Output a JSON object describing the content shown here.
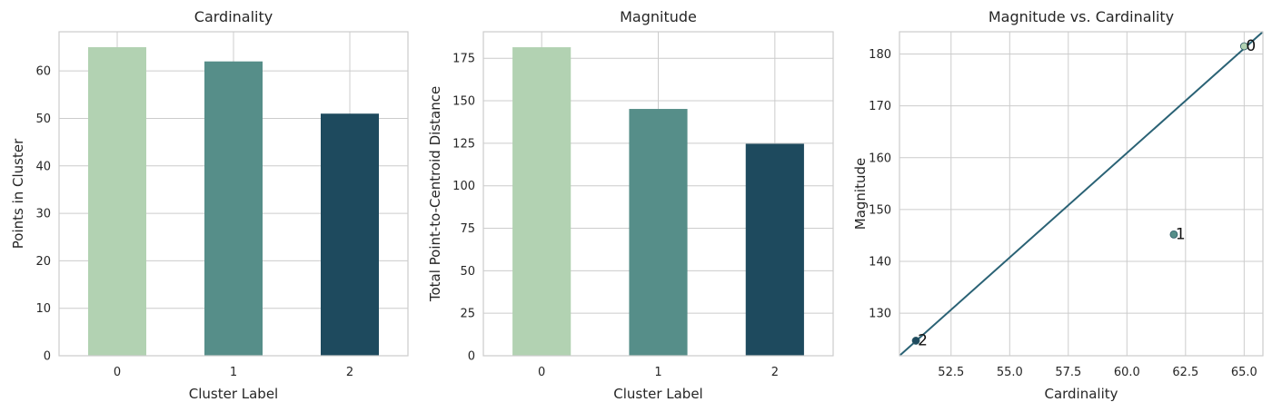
{
  "colors": {
    "cluster_0": "#b2d2b2",
    "cluster_1": "#568e89",
    "cluster_2": "#1e4a5e",
    "fit_line": "#2a6275",
    "grid": "#cccccc",
    "frame": "#cccccc"
  },
  "chart_data": [
    {
      "type": "bar",
      "title": "Cardinality",
      "xlabel": "Cluster Label",
      "ylabel": "Points in Cluster",
      "categories": [
        "0",
        "1",
        "2"
      ],
      "values": [
        65,
        62,
        51
      ],
      "ylim": [
        0,
        68.25
      ],
      "yticks": [
        0,
        10,
        20,
        30,
        40,
        50,
        60
      ],
      "grid": true,
      "legend": "none"
    },
    {
      "type": "bar",
      "title": "Magnitude",
      "xlabel": "Cluster Label",
      "ylabel": "Total Point-to-Centroid Distance",
      "categories": [
        "0",
        "1",
        "2"
      ],
      "values": [
        181.5,
        145.2,
        124.7
      ],
      "ylim": [
        0,
        190.6
      ],
      "yticks": [
        0,
        25,
        50,
        75,
        100,
        125,
        150,
        175
      ],
      "grid": true,
      "legend": "none"
    },
    {
      "type": "scatter",
      "title": "Magnitude vs. Cardinality",
      "xlabel": "Cardinality",
      "ylabel": "Magnitude",
      "points": [
        {
          "label": "0",
          "x": 65,
          "y": 181.5
        },
        {
          "label": "1",
          "x": 62,
          "y": 145.2
        },
        {
          "label": "2",
          "x": 51,
          "y": 124.7
        }
      ],
      "fit_line": {
        "x": [
          50.3,
          65.8
        ],
        "y": [
          121.8,
          184.3
        ]
      },
      "xlim": [
        50.3,
        65.8
      ],
      "ylim": [
        121.8,
        184.3
      ],
      "xticks": [
        "52.5",
        "55.0",
        "57.5",
        "60.0",
        "62.5",
        "65.0"
      ],
      "yticks": [
        "130",
        "140",
        "150",
        "160",
        "170",
        "180"
      ],
      "grid": true,
      "legend": "none"
    }
  ]
}
